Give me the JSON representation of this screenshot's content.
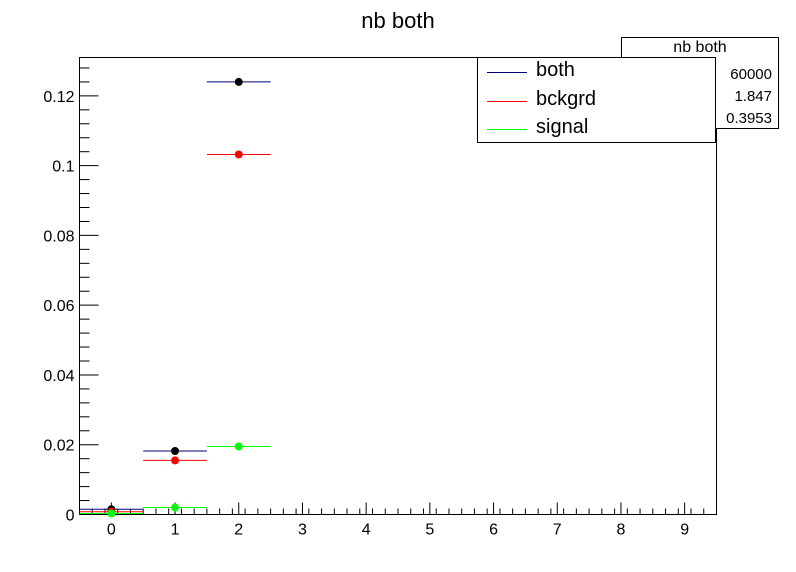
{
  "chart_data": {
    "type": "scatter",
    "title": "nb both",
    "xlabel": "",
    "ylabel": "",
    "xlim": [
      -0.5,
      9.5
    ],
    "ylim": [
      0,
      0.131
    ],
    "x_ticks": [
      "0",
      "1",
      "2",
      "3",
      "4",
      "5",
      "6",
      "7",
      "8",
      "9"
    ],
    "y_ticks": [
      "0",
      "0.02",
      "0.04",
      "0.06",
      "0.08",
      "0.1",
      "0.12"
    ],
    "bin_width": 1,
    "series": [
      {
        "name": "both",
        "line_color": "#00007f",
        "marker_color": "#000000",
        "x": [
          0,
          1,
          2
        ],
        "y": [
          0.0015,
          0.0182,
          0.124
        ]
      },
      {
        "name": "bckgrd",
        "line_color": "#ff0000",
        "marker_color": "#ff0000",
        "x": [
          0,
          1,
          2
        ],
        "y": [
          0.0008,
          0.0155,
          0.1032
        ]
      },
      {
        "name": "signal",
        "line_color": "#00ff00",
        "marker_color": "#00ff00",
        "x": [
          0,
          1,
          2
        ],
        "y": [
          0.0003,
          0.002,
          0.0195
        ]
      }
    ],
    "stats": {
      "title": "nb both",
      "entries": "60000",
      "mean": "1.847",
      "std_dev": "0.3953"
    },
    "legend_position": "top-right"
  }
}
